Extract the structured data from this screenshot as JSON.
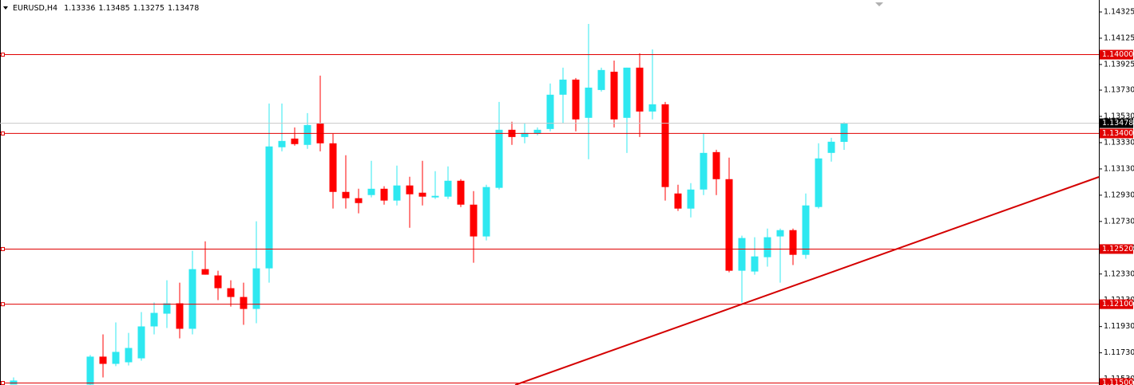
{
  "chart_data": {
    "type": "candlestick",
    "title": "EURUSD,H4",
    "up_color": "#2ee8f0",
    "down_color": "#ff0000",
    "level_color": "#e00000",
    "open": [
      1.11488,
      null,
      null,
      null,
      null,
      null,
      1.11488,
      1.11701,
      1.11646,
      1.11658,
      1.11688,
      1.11931,
      1.12028,
      1.12107,
      1.11913,
      1.12367,
      1.12319,
      1.12222,
      1.12155,
      1.12064,
      1.12373,
      1.13295,
      1.13361,
      1.13313,
      1.13476,
      1.13325,
      1.12955,
      1.12907,
      1.12931,
      1.12979,
      1.12889,
      1.13004,
      1.12949,
      1.12913,
      1.12919,
      1.1304,
      1.12858,
      1.12616,
      1.12986,
      1.13428,
      1.13373,
      1.13398,
      1.13434,
      1.13695,
      1.1381,
      1.13519,
      1.13731,
      1.1387,
      1.13519,
      1.13901,
      1.13567,
      1.13622,
      1.12943,
      1.12828,
      1.12973,
      1.13258,
      1.13052,
      1.12355,
      1.12349,
      1.12458,
      1.12616,
      1.12664,
      1.12476,
      1.1284,
      1.13252,
      1.13336
    ],
    "high": [
      1.11543,
      null,
      null,
      null,
      null,
      null,
      1.11713,
      1.1187,
      1.11961,
      1.11882,
      1.1204,
      1.12113,
      1.12282,
      1.12264,
      1.12507,
      1.12579,
      1.12355,
      1.12282,
      1.12264,
      1.12731,
      1.13628,
      1.13628,
      1.13446,
      1.13555,
      1.1384,
      1.13398,
      1.13234,
      1.12979,
      1.13192,
      1.12998,
      1.13155,
      1.1307,
      1.13192,
      1.13113,
      1.13149,
      1.13052,
      1.12961,
      1.1301,
      1.1364,
      1.13489,
      1.13476,
      1.13446,
      1.1378,
      1.13901,
      1.13822,
      1.14234,
      1.13901,
      1.13955,
      1.13901,
      1.1401,
      1.1404,
      1.1364,
      1.1301,
      1.13022,
      1.13398,
      1.13276,
      1.13216,
      1.12622,
      1.1261,
      1.12676,
      1.12676,
      1.12676,
      1.12943,
      1.13325,
      1.13367,
      1.13485
    ],
    "low": [
      1.11488,
      null,
      null,
      null,
      null,
      null,
      1.11476,
      1.11543,
      1.11628,
      1.11634,
      1.1167,
      1.1187,
      1.11919,
      1.1184,
      1.1187,
      1.12325,
      1.12131,
      1.12082,
      1.11943,
      1.11955,
      1.12264,
      1.13264,
      1.13307,
      1.13283,
      1.13264,
      1.12828,
      1.12828,
      1.12792,
      1.12913,
      1.12858,
      1.12852,
      1.12682,
      1.12852,
      1.12901,
      1.12901,
      1.1284,
      1.12416,
      1.12586,
      1.12973,
      1.13313,
      1.13325,
      1.13386,
      1.13416,
      1.13476,
      1.13416,
      1.13204,
      1.13719,
      1.13446,
      1.13252,
      1.13373,
      1.13507,
      1.12889,
      1.1281,
      1.12761,
      1.12931,
      1.12931,
      1.12343,
      1.12113,
      1.12325,
      1.12386,
      1.12264,
      1.12398,
      1.12446,
      1.12828,
      1.13186,
      1.13275
    ],
    "close": [
      1.11519,
      null,
      null,
      null,
      null,
      null,
      1.11701,
      1.11646,
      1.11737,
      1.11767,
      1.11931,
      1.12034,
      1.12107,
      1.11913,
      1.12367,
      1.12325,
      1.12222,
      1.12155,
      1.12064,
      1.12373,
      1.13301,
      1.13343,
      1.13319,
      1.13464,
      1.13325,
      1.12955,
      1.12907,
      1.1287,
      1.12979,
      1.12889,
      1.13004,
      1.12937,
      1.12919,
      1.12925,
      1.1304,
      1.12858,
      1.12616,
      1.12992,
      1.13428,
      1.13373,
      1.13404,
      1.13428,
      1.13695,
      1.1381,
      1.13507,
      1.13749,
      1.13883,
      1.13507,
      1.13901,
      1.13567,
      1.13622,
      1.12992,
      1.12828,
      1.12973,
      1.13252,
      1.13052,
      1.12355,
      1.12604,
      1.12464,
      1.1261,
      1.12664,
      1.12476,
      1.12852,
      1.1321,
      1.13337,
      1.13478
    ],
    "ylim": [
      1.11485,
      1.14416
    ],
    "yticks": [
      1.14325,
      1.14125,
      1.13925,
      {
        "value": 1.1373,
        "label": "1.13730"
      },
      {
        "value": 1.1353,
        "label": "1.13530"
      },
      {
        "value": 1.1333,
        "label": "1.13330"
      },
      {
        "value": 1.1313,
        "label": "1.13130"
      },
      {
        "value": 1.1293,
        "label": "1.12930"
      },
      {
        "value": 1.1273,
        "label": "1.12730"
      },
      {
        "value": 1.1253,
        "label": "1.12530"
      },
      {
        "value": 1.1233,
        "label": "1.12330"
      },
      {
        "value": 1.1213,
        "label": "1.12130"
      },
      {
        "value": 1.1193,
        "label": "1.11930"
      },
      {
        "value": 1.1173,
        "label": "1.11730"
      },
      {
        "value": 1.1153,
        "label": "1.11530"
      }
    ],
    "levels": [
      {
        "value": 1.14,
        "label": "1.14000"
      },
      {
        "value": 1.134,
        "label": "1.13400"
      },
      {
        "value": 1.1252,
        "label": "1.12520"
      },
      {
        "value": 1.121,
        "label": "1.12100"
      },
      {
        "value": 1.115,
        "label": "1.11500"
      }
    ],
    "current_price": 1.13478
  }
}
